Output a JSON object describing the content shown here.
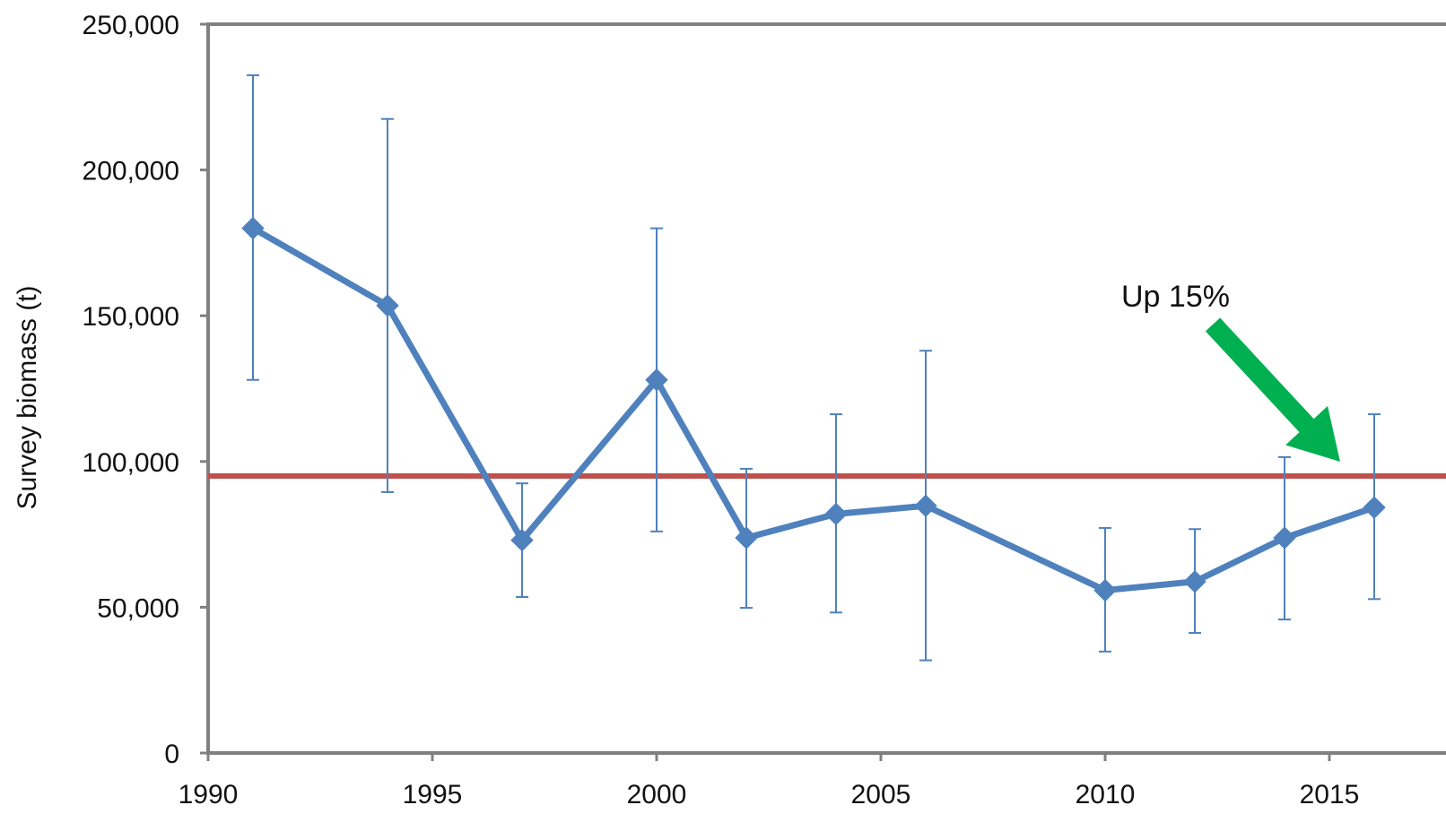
{
  "colors": {
    "series": "#4f81bd",
    "reference_line": "#c0504d",
    "annotation_arrow": "#00b050",
    "frame": "#808080",
    "text": "#111111"
  },
  "chart_data": {
    "type": "line",
    "title": "",
    "xlabel": "",
    "ylabel": "Survey biomass (t)",
    "xlim": [
      1990,
      2017
    ],
    "ylim": [
      0,
      250000
    ],
    "x_ticks": [
      1990,
      1995,
      2000,
      2005,
      2010,
      2015
    ],
    "x_tick_labels": [
      "1990",
      "1995",
      "2000",
      "2005",
      "2010",
      "2015"
    ],
    "y_ticks": [
      0,
      50000,
      100000,
      150000,
      200000,
      250000
    ],
    "y_tick_labels": [
      "0",
      "50,000",
      "100,000",
      "150,000",
      "200,000",
      "250,000"
    ],
    "grid": false,
    "legend": "none",
    "series": [
      {
        "marker": "diamond",
        "x": [
          1991,
          1994,
          1997,
          2000,
          2002,
          2004,
          2006,
          2010,
          2012,
          2014,
          2016
        ],
        "values": [
          180000,
          153500,
          73000,
          128000,
          73800,
          82000,
          84800,
          55800,
          58800,
          73800,
          84200
        ],
        "error_low": [
          128000,
          89500,
          53500,
          76000,
          49800,
          48200,
          31800,
          34800,
          41200,
          45800,
          52800
        ],
        "error_high": [
          232500,
          217500,
          92500,
          180000,
          97500,
          116200,
          138000,
          77200,
          76800,
          101500,
          116200
        ]
      }
    ],
    "reference_lines": [
      {
        "orientation": "horizontal",
        "value": 95000
      }
    ],
    "annotations": [
      {
        "text": "Up 15%",
        "points_to_x": 2016
      }
    ]
  }
}
